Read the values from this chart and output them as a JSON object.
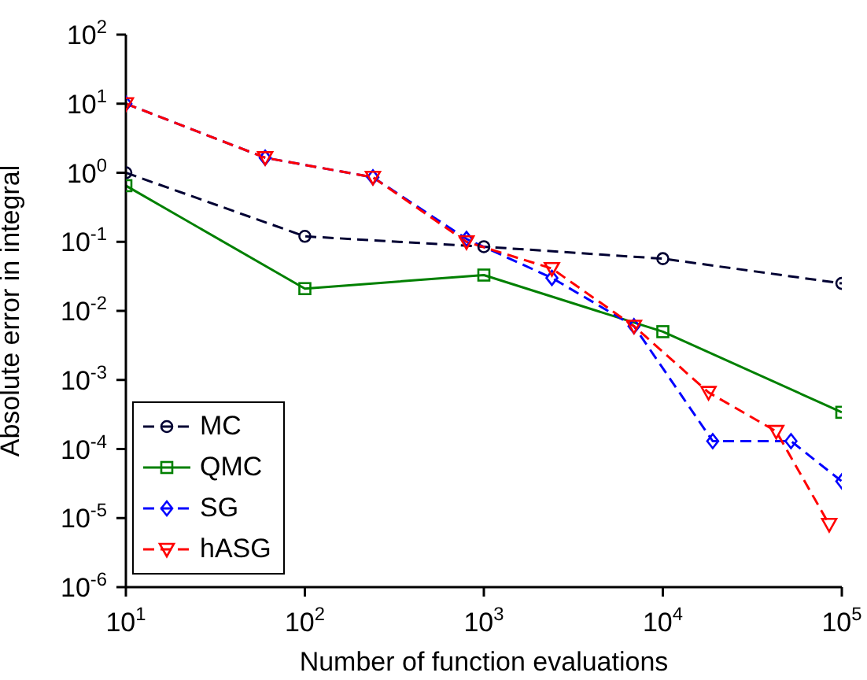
{
  "chart_data": {
    "type": "line",
    "xlabel": "Number of function evaluations",
    "ylabel": "Absolute error in integral",
    "log": "xy",
    "grid": false,
    "legend": "bottom left",
    "xlim": [
      10,
      100000
    ],
    "ylim": [
      1e-06,
      100
    ],
    "xticks": [
      {
        "value": 10,
        "label": "10$^{1}$"
      },
      {
        "value": 100,
        "label": "10$^{2}$"
      },
      {
        "value": 1000,
        "label": "10$^{3}$"
      },
      {
        "value": 10000,
        "label": "10$^{4}$"
      },
      {
        "value": 100000,
        "label": "10$^{5}$"
      }
    ],
    "yticks": [
      {
        "value": 1e-06,
        "label": "10$^{-6}$"
      },
      {
        "value": 1e-05,
        "label": "10$^{-5}$"
      },
      {
        "value": 0.0001,
        "label": "10$^{-4}$"
      },
      {
        "value": 0.001,
        "label": "10$^{-3}$"
      },
      {
        "value": 0.01,
        "label": "10$^{-2}$"
      },
      {
        "value": 0.1,
        "label": "10$^{-1}$"
      },
      {
        "value": 1,
        "label": "10$^{0}$"
      },
      {
        "value": 10,
        "label": "10$^{1}$"
      },
      {
        "value": 100,
        "label": "10$^{2}$"
      }
    ],
    "series": [
      {
        "name": "MC",
        "color": "#000033",
        "marker": "circle",
        "line_style": "dashed",
        "x": [
          10,
          100,
          1000,
          10000,
          100000
        ],
        "values": [
          1.0,
          0.12,
          0.085,
          0.057,
          0.025
        ]
      },
      {
        "name": "QMC",
        "color": "#008000",
        "marker": "square",
        "line_style": "solid",
        "x": [
          10,
          100,
          1000,
          10000,
          100000
        ],
        "values": [
          0.65,
          0.021,
          0.033,
          0.005,
          0.00034
        ]
      },
      {
        "name": "SG",
        "color": "#0000ff",
        "marker": "diamond",
        "line_style": "dashed",
        "x": [
          10,
          60,
          240,
          800,
          2400,
          6900,
          19000,
          52000,
          100000
        ],
        "values": [
          10,
          1.65,
          0.86,
          0.11,
          0.03,
          0.006,
          0.00013,
          0.00013,
          3.4e-05
        ]
      },
      {
        "name": "hASG",
        "color": "#ff0000",
        "marker": "triangle",
        "line_style": "dashed",
        "x": [
          10,
          60,
          240,
          800,
          2400,
          6900,
          18000,
          43000,
          85000
        ],
        "values": [
          10,
          1.65,
          0.86,
          0.1,
          0.041,
          0.006,
          0.00066,
          0.00018,
          8.1e-06
        ]
      }
    ]
  }
}
